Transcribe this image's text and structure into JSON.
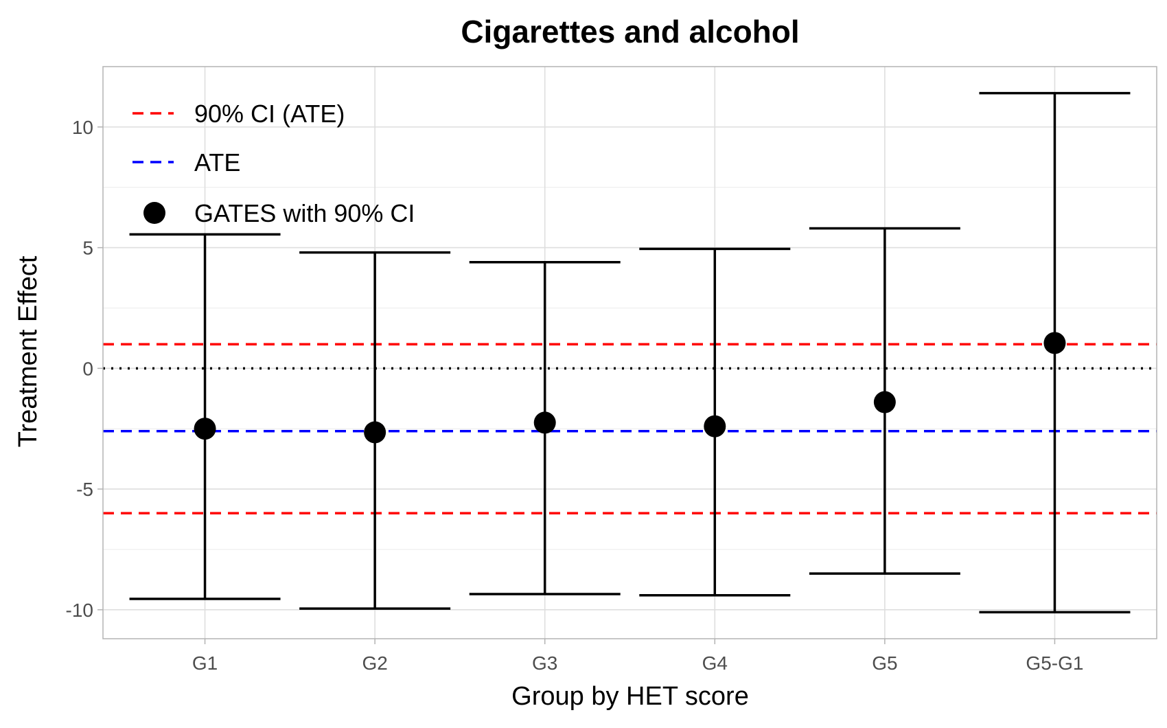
{
  "chart_data": {
    "type": "errorbar",
    "title": "Cigarettes and alcohol",
    "xlabel": "Group by HET score",
    "ylabel": "Treatment Effect",
    "categories": [
      "G1",
      "G2",
      "G3",
      "G4",
      "G5",
      "G5-G1"
    ],
    "ylim": [
      -11.2,
      12.5
    ],
    "yticks": [
      -10,
      -5,
      0,
      5,
      10
    ],
    "yticklabels": [
      "-10",
      "-5",
      "0",
      "5",
      "10"
    ],
    "grid": true,
    "legend_position": "top-left",
    "series": [
      {
        "name": "GATES with 90% CI",
        "estimate": [
          -2.5,
          -2.65,
          -2.25,
          -2.4,
          -1.4,
          1.05
        ],
        "ci_lower": [
          -9.55,
          -9.95,
          -9.35,
          -9.4,
          -8.5,
          -10.1
        ],
        "ci_upper": [
          5.55,
          4.8,
          4.4,
          4.95,
          5.8,
          11.4
        ],
        "color": "#000000"
      }
    ],
    "reference_lines": [
      {
        "name": "90% CI (ATE)",
        "values": [
          1.0,
          -6.0
        ],
        "color": "#ff0000",
        "style": "dashed"
      },
      {
        "name": "ATE",
        "values": [
          -2.6
        ],
        "color": "#0000ff",
        "style": "dashed"
      },
      {
        "name": "",
        "values": [
          0
        ],
        "color": "#000000",
        "style": "dotted"
      }
    ],
    "legend": [
      {
        "label": "90% CI (ATE)",
        "kind": "line",
        "color": "#ff0000"
      },
      {
        "label": "ATE",
        "kind": "line",
        "color": "#0000ff"
      },
      {
        "label": "GATES with 90% CI",
        "kind": "point",
        "color": "#000000"
      }
    ]
  }
}
